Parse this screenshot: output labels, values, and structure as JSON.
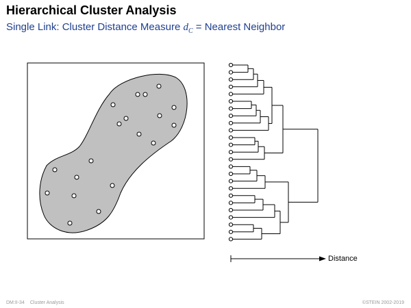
{
  "slide": {
    "title": "Hierarchical Cluster Analysis",
    "subtitle_prefix": "Single Link: Cluster Distance Measure ",
    "subtitle_math_base": "d",
    "subtitle_math_sub": "C",
    "subtitle_suffix": " = Nearest Neighbor"
  },
  "dendrogram": {
    "axis_label": "Distance",
    "leaf_count": 25
  },
  "footer": {
    "slide_number": "DM:II-34",
    "section": "Cluster Analysis",
    "copyright": "©STEIN 2002-2019"
  },
  "colors": {
    "title": "#000000",
    "subtitle": "#1f3f8f",
    "cluster_fill": "#c0c0c0",
    "footer": "#9a9a9a"
  }
}
